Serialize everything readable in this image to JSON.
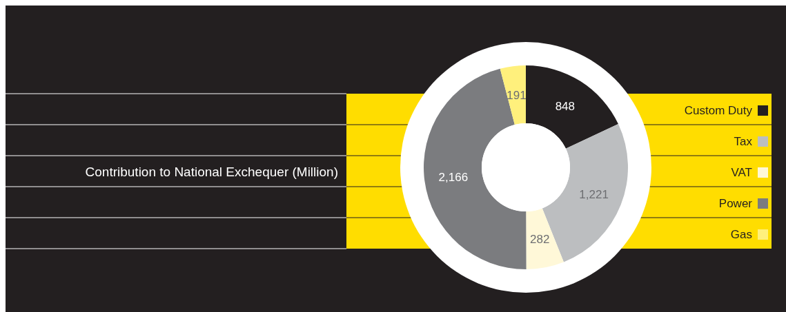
{
  "chart_data": {
    "type": "donut",
    "title": "Contribution to National Exchequer (Million)",
    "categories": [
      "Custom Duty",
      "Tax",
      "VAT",
      "Power",
      "Gas"
    ],
    "values": [
      848,
      1221,
      282,
      2166,
      191
    ],
    "colors": [
      "#231f20",
      "#bcbec0",
      "#fff8d8",
      "#7b7c7f",
      "#fff07c"
    ],
    "value_labels": [
      "848",
      "1,221",
      "282",
      "2,166",
      "191"
    ],
    "legend": "right"
  }
}
